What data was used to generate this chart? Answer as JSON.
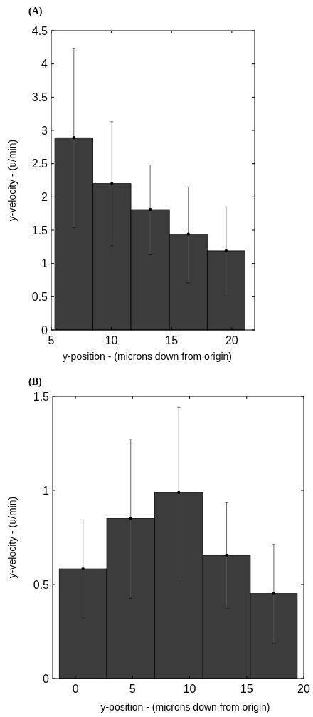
{
  "chart_data": [
    {
      "type": "histogram",
      "title": "(A)",
      "xlabel": "y-position - (microns down from origin)",
      "ylabel": "y-velocity - (u/min)",
      "bins": [
        5.3,
        8.46,
        11.62,
        14.82,
        17.96,
        21.1
      ],
      "values": [
        2.89,
        2.2,
        1.81,
        1.44,
        1.19
      ],
      "errors": [
        [
          1.54,
          4.23
        ],
        [
          1.27,
          3.13
        ],
        [
          1.13,
          2.48
        ],
        [
          0.71,
          2.15
        ],
        [
          0.51,
          1.85
        ]
      ],
      "color": "#3c3c3c",
      "marker": "circle",
      "xlim": [
        5,
        21.9
      ],
      "xticks": [
        5,
        10,
        15,
        20
      ],
      "ylim": [
        0,
        4.5
      ],
      "yticks": [
        0,
        0.5,
        1,
        1.5,
        2,
        2.5,
        3,
        3.5,
        4,
        4.5
      ],
      "grid": false
    },
    {
      "type": "histogram",
      "title": "(B)",
      "xlabel": "y-position - (microns down from origin)",
      "ylabel": "y-velocity - (u/min)",
      "bins": [
        -1.42,
        2.74,
        6.94,
        11.16,
        15.32,
        19.43
      ],
      "values": [
        0.583,
        0.85,
        0.989,
        0.653,
        0.452
      ],
      "errors": [
        [
          0.325,
          0.843
        ],
        [
          0.427,
          1.269
        ],
        [
          0.54,
          1.442
        ],
        [
          0.372,
          0.934
        ],
        [
          0.186,
          0.713
        ]
      ],
      "color": "#3c3c3c",
      "marker": "circle",
      "xlim": [
        -2,
        20
      ],
      "xticks": [
        0,
        5,
        10,
        15,
        20
      ],
      "ylim": [
        0,
        1.5
      ],
      "yticks": [
        0,
        0.5,
        1,
        1.5
      ],
      "grid": false
    }
  ]
}
